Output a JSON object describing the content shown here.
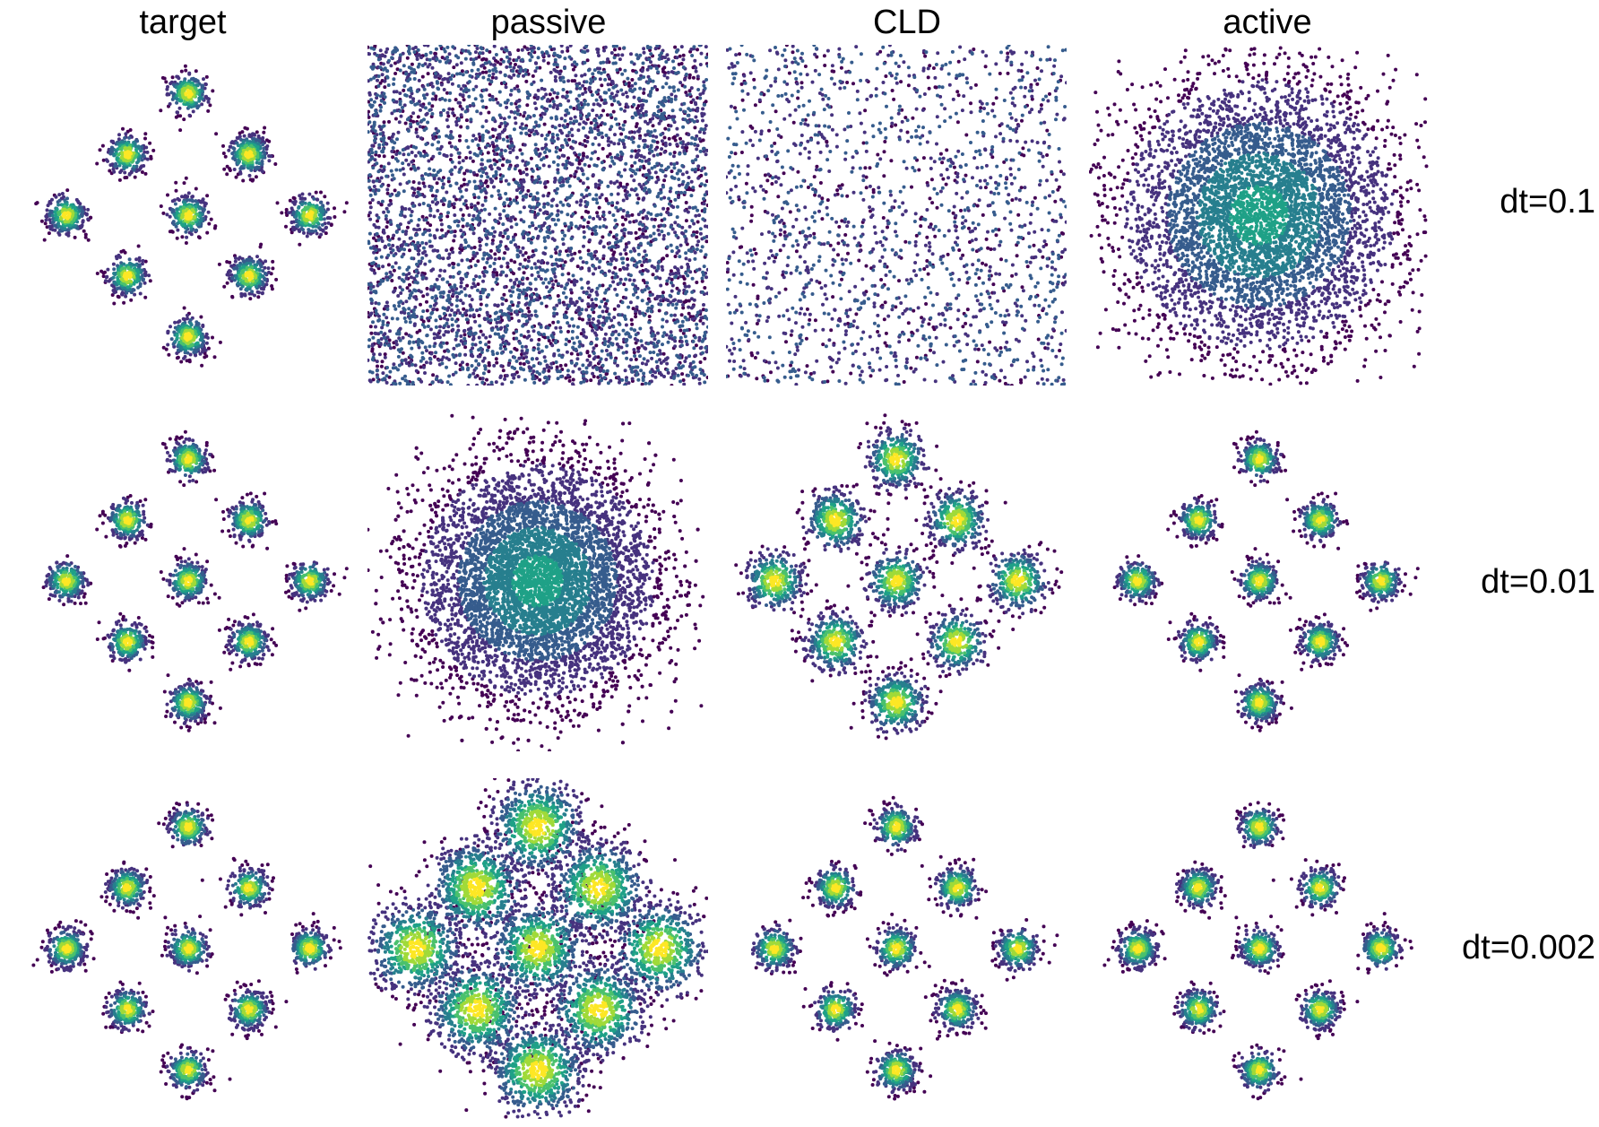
{
  "columns": [
    "target",
    "passive",
    "CLD",
    "active"
  ],
  "rows": [
    "dt=0.1",
    "dt=0.01",
    "dt=0.002"
  ],
  "colormap": {
    "name": "viridis",
    "stops": [
      "#440154",
      "#46327e",
      "#365c8d",
      "#277f8e",
      "#1fa187",
      "#4ac16d",
      "#a0da39",
      "#fde725"
    ]
  },
  "chart_data": {
    "type": "scatter",
    "description_of_color": "point color indicates local density (viridis)",
    "target_modes": [
      [
        0,
        2
      ],
      [
        -1,
        1
      ],
      [
        1,
        1
      ],
      [
        -2,
        0
      ],
      [
        0,
        0
      ],
      [
        2,
        0
      ],
      [
        -1,
        -1
      ],
      [
        1,
        -1
      ],
      [
        0,
        -2
      ]
    ],
    "axis_range": [
      -2.8,
      2.8
    ],
    "grid": false,
    "panels": [
      {
        "row": "dt=0.1",
        "column": "target",
        "pattern": "modes",
        "spread": 0.16,
        "points": 2400
      },
      {
        "row": "dt=0.1",
        "column": "passive",
        "pattern": "uniform",
        "extent": 2.8,
        "points": 5000
      },
      {
        "row": "dt=0.1",
        "column": "CLD",
        "pattern": "uniform",
        "extent": 2.8,
        "points": 1800
      },
      {
        "row": "dt=0.1",
        "column": "active",
        "pattern": "blob",
        "spread": 1.1,
        "points": 5000
      },
      {
        "row": "dt=0.01",
        "column": "target",
        "pattern": "modes",
        "spread": 0.16,
        "points": 2400
      },
      {
        "row": "dt=0.01",
        "column": "passive",
        "pattern": "blob",
        "spread": 0.95,
        "points": 6000
      },
      {
        "row": "dt=0.01",
        "column": "CLD",
        "pattern": "modes",
        "spread": 0.24,
        "points": 3200
      },
      {
        "row": "dt=0.01",
        "column": "active",
        "pattern": "modes",
        "spread": 0.16,
        "points": 2400
      },
      {
        "row": "dt=0.002",
        "column": "target",
        "pattern": "modes",
        "spread": 0.16,
        "points": 2400
      },
      {
        "row": "dt=0.002",
        "column": "passive",
        "pattern": "modes",
        "spread": 0.38,
        "points": 6000
      },
      {
        "row": "dt=0.002",
        "column": "CLD",
        "pattern": "modes",
        "spread": 0.17,
        "points": 2400
      },
      {
        "row": "dt=0.002",
        "column": "active",
        "pattern": "modes",
        "spread": 0.16,
        "points": 2400
      }
    ]
  }
}
